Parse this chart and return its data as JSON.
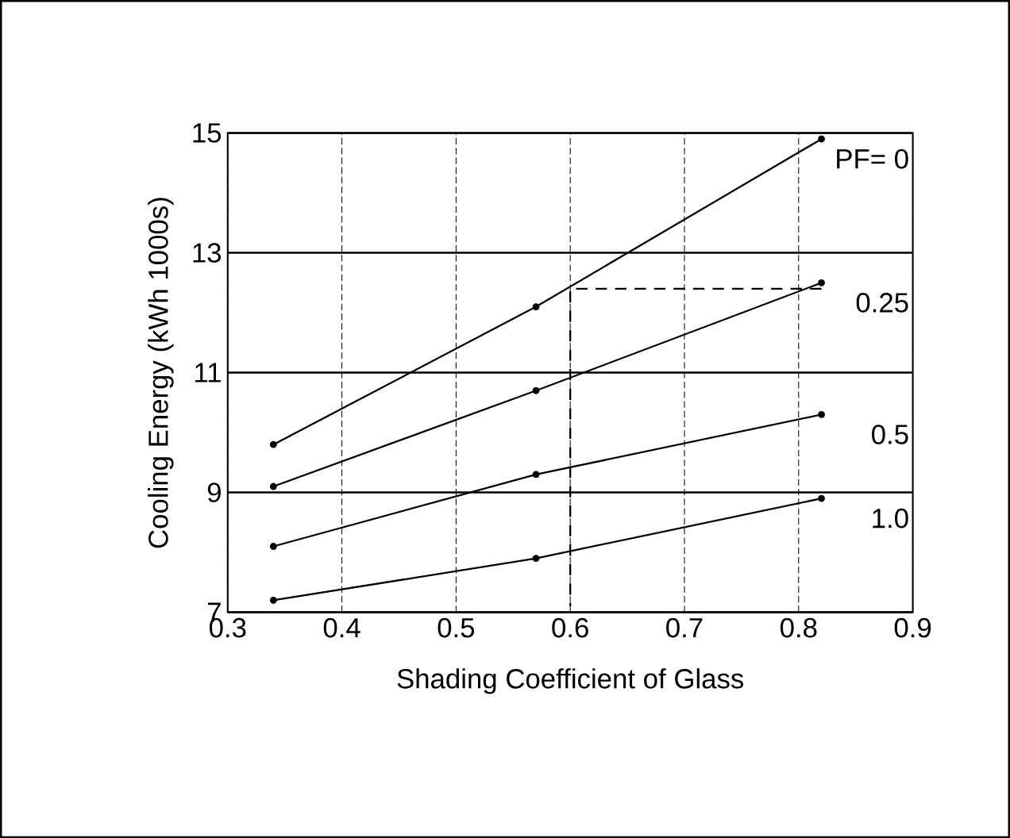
{
  "chart_data": {
    "type": "line",
    "xlabel": "Shading Coefficient of Glass",
    "ylabel": "Cooling Energy (kWh 1000s)",
    "xlim": [
      0.3,
      0.9
    ],
    "xticks": [
      0.3,
      0.4,
      0.5,
      0.6,
      0.7,
      0.8,
      0.9
    ],
    "ylim": [
      7,
      15
    ],
    "yticks": [
      7,
      9,
      11,
      13,
      15
    ],
    "grid": true,
    "legend": false,
    "marker": "circle",
    "series": [
      {
        "name": "PF= 0",
        "color": "#000000",
        "x": [
          0.34,
          0.57,
          0.82
        ],
        "values": [
          9.8,
          12.1,
          14.9
        ]
      },
      {
        "name": "0.25",
        "color": "#000000",
        "x": [
          0.34,
          0.57,
          0.82
        ],
        "values": [
          9.1,
          10.7,
          12.5
        ]
      },
      {
        "name": "0.5",
        "color": "#000000",
        "x": [
          0.34,
          0.57,
          0.82
        ],
        "values": [
          8.1,
          9.3,
          10.3
        ]
      },
      {
        "name": "1.0",
        "color": "#000000",
        "x": [
          0.34,
          0.57,
          0.82
        ],
        "values": [
          7.2,
          7.9,
          8.9
        ]
      },
      {
        "color": "#000000",
        "x": [
          0.82,
          0.6,
          0.6
        ],
        "values": [
          12.4,
          12.4,
          7.1
        ],
        "line_style": "dashed",
        "marker": "none"
      }
    ]
  }
}
